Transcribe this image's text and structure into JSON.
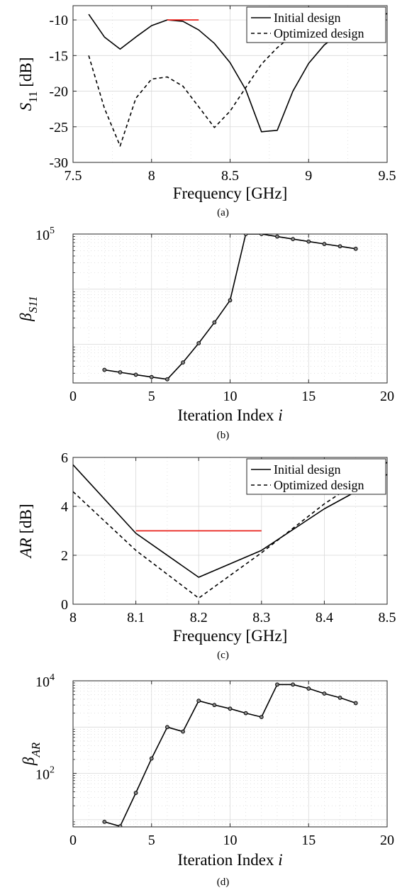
{
  "chart_data": [
    {
      "id": "a",
      "type": "line",
      "caption": "(a)",
      "xlabel": "Frequency [GHz]",
      "ylabel": "S",
      "ylabel_sub": "11",
      "ylabel_unit": " [dB]",
      "xlim": [
        7.5,
        9.5
      ],
      "ylim": [
        -30,
        -8
      ],
      "xticks": [
        7.5,
        8,
        8.5,
        9,
        9.5
      ],
      "xtick_labels": [
        "7.5",
        "8",
        "8.5",
        "9",
        "9.5"
      ],
      "yticks": [
        -30,
        -25,
        -20,
        -15,
        -10
      ],
      "ytick_labels": [
        "-30",
        "-25",
        "-20",
        "-15",
        "-10"
      ],
      "grid": true,
      "legend_position": "top-right",
      "series": [
        {
          "name": "Initial design",
          "style": "solid",
          "x": [
            7.6,
            7.7,
            7.8,
            7.9,
            8.0,
            8.1,
            8.2,
            8.3,
            8.4,
            8.5,
            8.6,
            8.7,
            8.8,
            8.9,
            9.0,
            9.1,
            9.2,
            9.3,
            9.4,
            9.5
          ],
          "y": [
            -9.2,
            -12.4,
            -14.1,
            -12.4,
            -10.8,
            -10.0,
            -10.2,
            -11.4,
            -13.3,
            -16.0,
            -19.8,
            -25.7,
            -25.5,
            -20.0,
            -16.1,
            -13.5,
            -11.9,
            -10.8,
            -9.9,
            -9.1
          ]
        },
        {
          "name": "Optimized design",
          "style": "dashed",
          "x": [
            7.6,
            7.7,
            7.8,
            7.9,
            8.0,
            8.1,
            8.2,
            8.3,
            8.4,
            8.5,
            8.6,
            8.7,
            8.8,
            8.9,
            9.0,
            9.1,
            9.2,
            9.3,
            9.4,
            9.5
          ],
          "y": [
            -15.0,
            -22.4,
            -27.7,
            -21.0,
            -18.3,
            -18.0,
            -19.3,
            -22.2,
            -25.1,
            -22.8,
            -19.5,
            -16.2,
            -13.9,
            -12.1,
            -10.9,
            -10.0,
            -9.5,
            -9.1,
            -8.8,
            -8.5
          ]
        }
      ],
      "spec_line": {
        "x": [
          8.1,
          8.3
        ],
        "y": -10,
        "color": "#e8211b"
      }
    },
    {
      "id": "b",
      "type": "line",
      "caption": "(b)",
      "xlabel": "Iteration Index ",
      "xlabel_italic": "i",
      "ylabel": "β",
      "ylabel_sub": "S11",
      "log_scale_y": true,
      "xlim": [
        0,
        20
      ],
      "ylim": [
        200,
        100000
      ],
      "xticks": [
        0,
        5,
        10,
        15,
        20
      ],
      "xtick_labels": [
        "0",
        "5",
        "10",
        "15",
        "20"
      ],
      "ytick_label_base": "10",
      "ytick_label_exp": "5",
      "ytick_label_value": 100000,
      "grid": true,
      "series": [
        {
          "name": "",
          "style": "solid-markers",
          "x": [
            2,
            3,
            4,
            5,
            6,
            7,
            8,
            9,
            10,
            11,
            12,
            13,
            14,
            15,
            16,
            17,
            18
          ],
          "y": [
            345,
            312,
            282,
            256,
            233,
            470,
            1050,
            2500,
            6300,
            100000,
            100000,
            90000,
            81000,
            73000,
            66000,
            60000,
            54000
          ]
        }
      ]
    },
    {
      "id": "c",
      "type": "line",
      "caption": "(c)",
      "xlabel": "Frequency [GHz]",
      "ylabel": "AR",
      "ylabel_unit": " [dB]",
      "xlim": [
        8.0,
        8.5
      ],
      "ylim": [
        0,
        6
      ],
      "xticks": [
        8.0,
        8.1,
        8.2,
        8.3,
        8.4,
        8.5
      ],
      "xtick_labels": [
        "8",
        "8.1",
        "8.2",
        "8.3",
        "8.4",
        "8.5"
      ],
      "yticks": [
        0,
        2,
        4,
        6
      ],
      "ytick_labels": [
        "0",
        "2",
        "4",
        "6"
      ],
      "grid": true,
      "legend_position": "top-right",
      "series": [
        {
          "name": "Initial design",
          "style": "solid",
          "x": [
            8.0,
            8.1,
            8.2,
            8.3,
            8.4,
            8.5
          ],
          "y": [
            5.7,
            2.9,
            1.1,
            2.2,
            3.9,
            5.3
          ]
        },
        {
          "name": "Optimized design",
          "style": "dashed",
          "x": [
            8.0,
            8.1,
            8.2,
            8.3,
            8.4,
            8.5
          ],
          "y": [
            4.6,
            2.2,
            0.25,
            2.1,
            4.1,
            5.8
          ]
        }
      ],
      "spec_line": {
        "x": [
          8.1,
          8.3
        ],
        "y": 3,
        "color": "#e8211b"
      }
    },
    {
      "id": "d",
      "type": "line",
      "caption": "(d)",
      "xlabel": "Iteration Index ",
      "xlabel_italic": "i",
      "ylabel": "β",
      "ylabel_sub": "AR",
      "log_scale_y": true,
      "xlim": [
        0,
        20
      ],
      "ylim": [
        7,
        10000
      ],
      "xticks": [
        0,
        5,
        10,
        15,
        20
      ],
      "xtick_labels": [
        "0",
        "5",
        "10",
        "15",
        "20"
      ],
      "yticks_log": [
        {
          "value": 100,
          "base": "10",
          "exp": "2"
        },
        {
          "value": 10000,
          "base": "10",
          "exp": "4"
        }
      ],
      "grid": true,
      "series": [
        {
          "name": "",
          "style": "solid-markers",
          "x": [
            2,
            3,
            4,
            5,
            6,
            7,
            8,
            9,
            10,
            11,
            12,
            13,
            14,
            15,
            16,
            17,
            18
          ],
          "y": [
            9,
            7.2,
            38,
            210,
            1000,
            800,
            3700,
            3000,
            2500,
            2000,
            1650,
            8300,
            8300,
            6800,
            5300,
            4300,
            3300
          ]
        }
      ]
    }
  ]
}
